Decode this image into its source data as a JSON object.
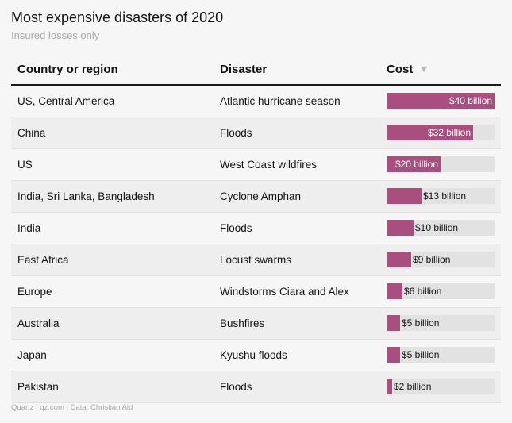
{
  "title": "Most expensive disasters of 2020",
  "subtitle": "Insured losses only",
  "source": "Quartz | qz.com | Data: Christian Aid",
  "colors": {
    "bar": "#a84f80",
    "track": "#e2e2e2"
  },
  "headers": {
    "country": "Country or region",
    "disaster": "Disaster",
    "cost": "Cost",
    "sort_icon": "sort-down-icon"
  },
  "chart_data": {
    "type": "table",
    "title": "Most expensive disasters of 2020",
    "subtitle": "Insured losses only",
    "columns": [
      "Country or region",
      "Disaster",
      "Cost"
    ],
    "unit": "billion USD",
    "xlim": [
      0,
      40
    ],
    "rows": [
      {
        "country": "US, Central America",
        "disaster": "Atlantic hurricane season",
        "value": 40,
        "label": "$40 billion"
      },
      {
        "country": "China",
        "disaster": "Floods",
        "value": 32,
        "label": "$32 billion"
      },
      {
        "country": "US",
        "disaster": "West Coast wildfires",
        "value": 20,
        "label": "$20 billion"
      },
      {
        "country": "India, Sri Lanka, Bangladesh",
        "disaster": "Cyclone Amphan",
        "value": 13,
        "label": "$13 billion"
      },
      {
        "country": "India",
        "disaster": "Floods",
        "value": 10,
        "label": "$10 billion"
      },
      {
        "country": "East Africa",
        "disaster": "Locust swarms",
        "value": 9,
        "label": "$9 billion"
      },
      {
        "country": "Europe",
        "disaster": "Windstorms Ciara and Alex",
        "value": 6,
        "label": "$6 billion"
      },
      {
        "country": "Australia",
        "disaster": "Bushfires",
        "value": 5,
        "label": "$5 billion"
      },
      {
        "country": "Japan",
        "disaster": "Kyushu floods",
        "value": 5,
        "label": "$5 billion"
      },
      {
        "country": "Pakistan",
        "disaster": "Floods",
        "value": 2,
        "label": "$2 billion"
      }
    ]
  }
}
